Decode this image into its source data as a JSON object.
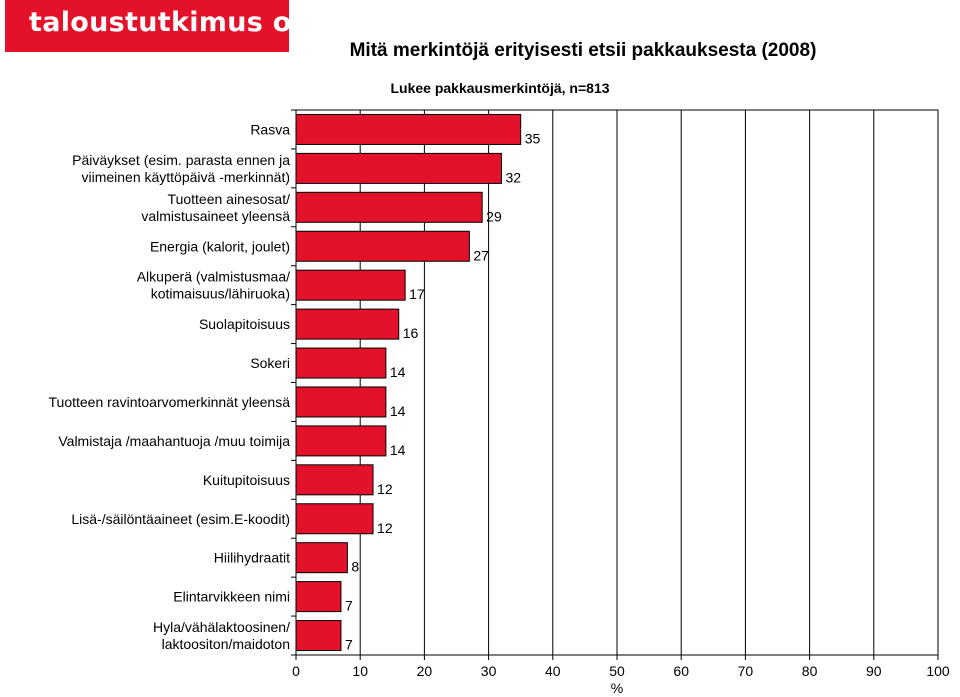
{
  "logo_text": "taloustutkimus oy",
  "colors": {
    "bar": "#e4112b",
    "brand": "#e4112b"
  },
  "chart_data": {
    "type": "bar",
    "orientation": "horizontal",
    "title": "Mitä merkintöjä erityisesti etsii pakkauksesta (2008)",
    "subtitle": "Lukee pakkausmerkintöjä, n=813",
    "xlabel": "%",
    "xlim": [
      0,
      100
    ],
    "xticks": [
      0,
      10,
      20,
      30,
      40,
      50,
      60,
      70,
      80,
      90,
      100
    ],
    "grid": true,
    "categories": [
      [
        "Rasva"
      ],
      [
        "Päiväykset (esim. parasta ennen ja",
        "viimeinen käyttöpäivä -merkinnät)"
      ],
      [
        "Tuotteen ainesosat/",
        "valmistusaineet yleensä"
      ],
      [
        "Energia (kalorit, joulet)"
      ],
      [
        "Alkuperä (valmistusmaa/",
        "kotimaisuus/lähiruoka)"
      ],
      [
        "Suolapitoisuus"
      ],
      [
        "Sokeri"
      ],
      [
        "Tuotteen ravintoarvomerkinnät yleensä"
      ],
      [
        "Valmistaja /maahantuoja /muu toimija"
      ],
      [
        "Kuitupitoisuus"
      ],
      [
        "Lisä-/säilöntäaineet (esim.E-koodit)"
      ],
      [
        "Hiilihydraatit"
      ],
      [
        "Elintarvikkeen nimi"
      ],
      [
        "Hyla/vähälaktoosinen/",
        "laktoositon/maidoton"
      ]
    ],
    "values": [
      35,
      32,
      29,
      27,
      17,
      16,
      14,
      14,
      14,
      12,
      12,
      8,
      7,
      7
    ]
  }
}
